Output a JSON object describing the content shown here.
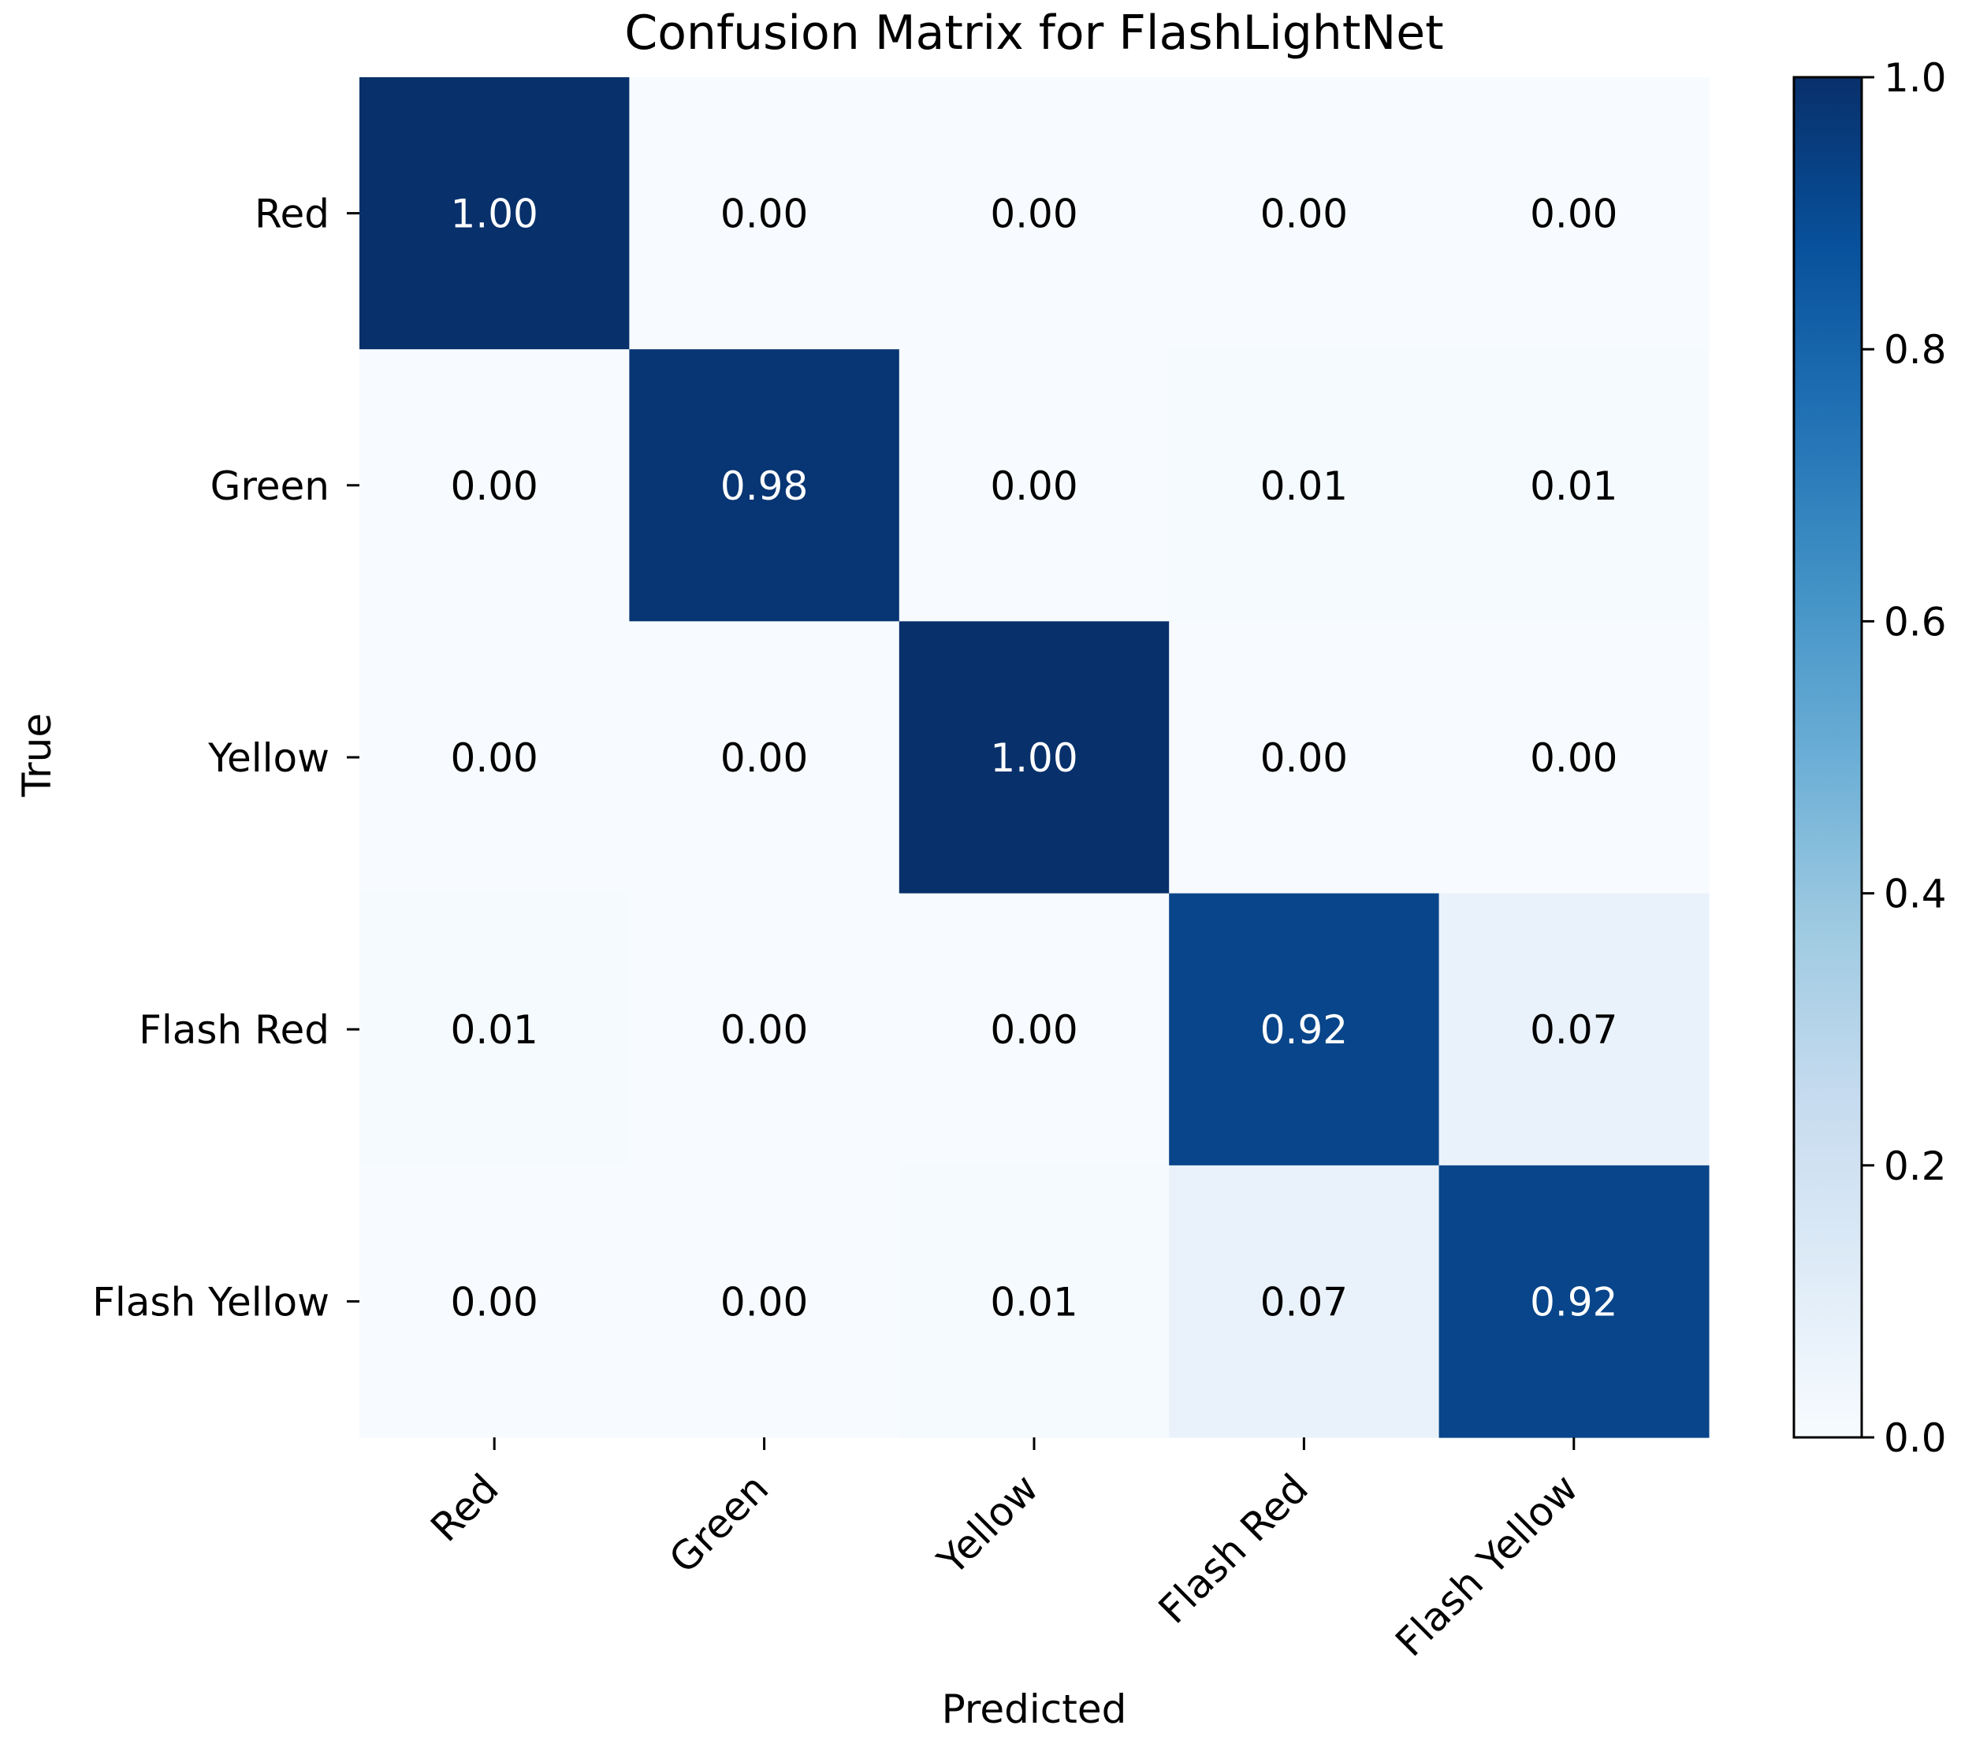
{
  "chart_data": {
    "type": "heatmap",
    "title": "Confusion Matrix for FlashLightNet",
    "xlabel": "Predicted",
    "ylabel": "True",
    "x_categories": [
      "Red",
      "Green",
      "Yellow",
      "Flash Red",
      "Flash Yellow"
    ],
    "y_categories": [
      "Red",
      "Green",
      "Yellow",
      "Flash Red",
      "Flash Yellow"
    ],
    "values": [
      [
        1.0,
        0.0,
        0.0,
        0.0,
        0.0
      ],
      [
        0.0,
        0.98,
        0.0,
        0.01,
        0.01
      ],
      [
        0.0,
        0.0,
        1.0,
        0.0,
        0.0
      ],
      [
        0.01,
        0.0,
        0.0,
        0.92,
        0.07
      ],
      [
        0.0,
        0.0,
        0.01,
        0.07,
        0.92
      ]
    ],
    "value_format": "0.00",
    "colormap": "Blues",
    "colorbar": {
      "range": [
        0.0,
        1.0
      ],
      "ticks": [
        "0.0",
        "0.2",
        "0.4",
        "0.6",
        "0.8",
        "1.0"
      ]
    },
    "legend": "colorbar-right",
    "grid": false
  }
}
